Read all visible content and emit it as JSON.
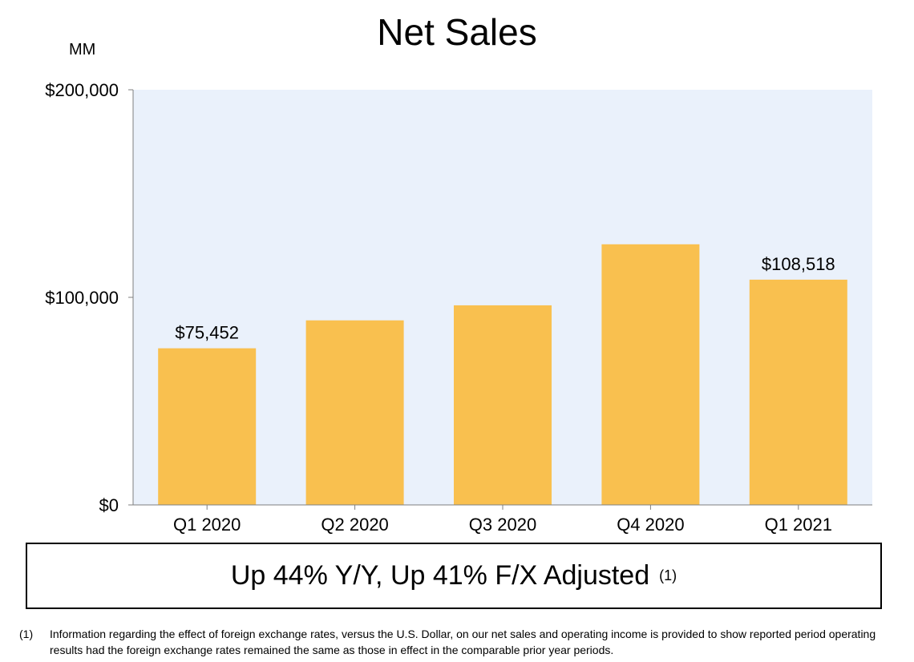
{
  "chart_data": {
    "type": "bar",
    "title": "Net Sales",
    "unit_label": "MM",
    "categories": [
      "Q1 2020",
      "Q2 2020",
      "Q3 2020",
      "Q4 2020",
      "Q1 2021"
    ],
    "values": [
      75452,
      88912,
      96145,
      125555,
      108518
    ],
    "data_labels": [
      "$75,452",
      "",
      "",
      "",
      "$108,518"
    ],
    "yticks": [
      {
        "value": 0,
        "label": "$0"
      },
      {
        "value": 100000,
        "label": "$100,000"
      },
      {
        "value": 200000,
        "label": "$200,000"
      }
    ],
    "ylim": [
      0,
      200000
    ],
    "xlabel": "",
    "ylabel": "",
    "grid": false,
    "legend": "none",
    "colors": {
      "bar": "#F9C04F",
      "plot_background": "#EAF1FB",
      "axis": "#7F7F7F"
    }
  },
  "callout": {
    "text": "Up 44% Y/Y, Up 41% F/X Adjusted",
    "note": "(1)"
  },
  "footnote": {
    "marker": "(1)",
    "text": "Information regarding the effect of foreign exchange rates, versus the U.S. Dollar, on our net sales and operating income is provided to show reported period operating results had the foreign exchange rates remained the same as those in effect in the comparable prior year periods."
  }
}
